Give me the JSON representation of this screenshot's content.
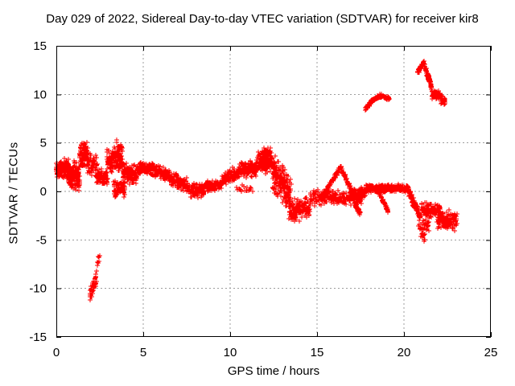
{
  "title": "Day 029 of 2022, Sidereal Day-to-day VTEC variation (SDTVAR) for receiver kir8",
  "colors": {
    "marker": "#ff0000",
    "grid": "#9e9e9e",
    "border": "#000000",
    "text": "#000000",
    "background": "#ffffff"
  },
  "chart_data": {
    "type": "scatter",
    "title": "Day 029 of 2022, Sidereal Day-to-day VTEC variation (SDTVAR) for receiver kir8",
    "xlabel": "GPS time / hours",
    "ylabel": "SDTVAR / TECUs",
    "xlim": [
      0,
      25
    ],
    "ylim": [
      -15,
      15
    ],
    "xticks": [
      0,
      5,
      10,
      15,
      20,
      25
    ],
    "yticks": [
      -15,
      -10,
      -5,
      0,
      5,
      10,
      15
    ],
    "grid": true,
    "legend": "none",
    "marker": {
      "shape": "plus",
      "color": "#ff0000",
      "size": 7
    },
    "segments_format": [
      "t_start_hours",
      "t_end_hours",
      "value_start_TECU",
      "value_end_TECU",
      "half_spread_TECU",
      "n_points"
    ],
    "series": [
      {
        "name": "SDTVAR",
        "color": "#ff0000",
        "segments": [
          [
            0.0,
            0.75,
            2.4,
            2.3,
            1.1,
            150
          ],
          [
            0.7,
            1.35,
            1.6,
            1.4,
            1.8,
            150
          ],
          [
            1.35,
            1.8,
            3.7,
            3.7,
            1.5,
            95
          ],
          [
            1.8,
            2.35,
            2.9,
            2.6,
            1.3,
            65
          ],
          [
            2.3,
            2.95,
            1.6,
            1.5,
            1.0,
            90
          ],
          [
            2.9,
            3.35,
            3.1,
            3.1,
            1.4,
            65
          ],
          [
            3.35,
            3.8,
            3.6,
            3.6,
            1.8,
            85
          ],
          [
            3.3,
            3.95,
            0.3,
            0.3,
            1.0,
            75
          ],
          [
            3.8,
            4.65,
            2.1,
            1.5,
            1.2,
            110
          ],
          [
            4.65,
            5.4,
            2.4,
            2.4,
            0.7,
            95
          ],
          [
            5.4,
            6.6,
            2.5,
            1.4,
            0.8,
            115
          ],
          [
            6.6,
            7.5,
            1.3,
            0.6,
            0.8,
            95
          ],
          [
            7.5,
            8.5,
            0.2,
            0.1,
            0.85,
            100
          ],
          [
            8.5,
            9.5,
            0.5,
            0.7,
            0.6,
            95
          ],
          [
            9.5,
            10.5,
            1.2,
            2.0,
            0.8,
            100
          ],
          [
            10.3,
            11.3,
            0.3,
            0.3,
            0.4,
            18
          ],
          [
            10.5,
            11.5,
            2.2,
            2.3,
            1.0,
            105
          ],
          [
            11.5,
            12.45,
            3.0,
            2.9,
            1.2,
            125
          ],
          [
            11.85,
            12.35,
            3.9,
            3.9,
            0.7,
            55
          ],
          [
            12.45,
            13.5,
            2.0,
            -0.6,
            2.2,
            200
          ],
          [
            13.4,
            14.6,
            -1.9,
            -1.8,
            1.3,
            125
          ],
          [
            14.6,
            17.6,
            -0.7,
            -0.6,
            0.85,
            190
          ],
          [
            15.2,
            16.35,
            -0.9,
            2.5,
            0.3,
            75
          ],
          [
            16.35,
            17.1,
            2.5,
            -0.3,
            0.3,
            55
          ],
          [
            16.95,
            17.5,
            -0.3,
            -2.4,
            0.4,
            40
          ],
          [
            17.1,
            17.8,
            -0.3,
            -0.1,
            0.7,
            60
          ],
          [
            17.8,
            20.25,
            0.3,
            0.3,
            0.45,
            240
          ],
          [
            18.45,
            19.1,
            0.3,
            -2.1,
            0.25,
            45
          ],
          [
            20.25,
            20.95,
            0.1,
            -2.7,
            0.6,
            100
          ],
          [
            20.85,
            21.45,
            -3.8,
            -3.9,
            1.0,
            32
          ],
          [
            21.0,
            21.25,
            -4.3,
            -5.4,
            0.5,
            6
          ],
          [
            21.0,
            22.1,
            -1.9,
            -2.0,
            0.9,
            115
          ],
          [
            21.9,
            23.05,
            -2.9,
            -3.1,
            1.15,
            130
          ],
          [
            1.92,
            2.3,
            -10.7,
            -9.1,
            0.85,
            38
          ],
          [
            2.26,
            2.52,
            -8.3,
            -6.4,
            0.45,
            9
          ],
          [
            17.78,
            18.15,
            8.5,
            9.35,
            0.25,
            34
          ],
          [
            18.15,
            18.65,
            9.35,
            9.9,
            0.22,
            40
          ],
          [
            18.65,
            19.15,
            9.9,
            9.55,
            0.22,
            40
          ],
          [
            20.78,
            21.17,
            12.3,
            13.25,
            0.3,
            42
          ],
          [
            21.17,
            21.6,
            13.0,
            10.7,
            0.45,
            55
          ],
          [
            21.6,
            22.12,
            10.0,
            9.9,
            0.5,
            70
          ],
          [
            22.12,
            22.38,
            9.4,
            9.3,
            0.5,
            28
          ]
        ]
      }
    ]
  }
}
